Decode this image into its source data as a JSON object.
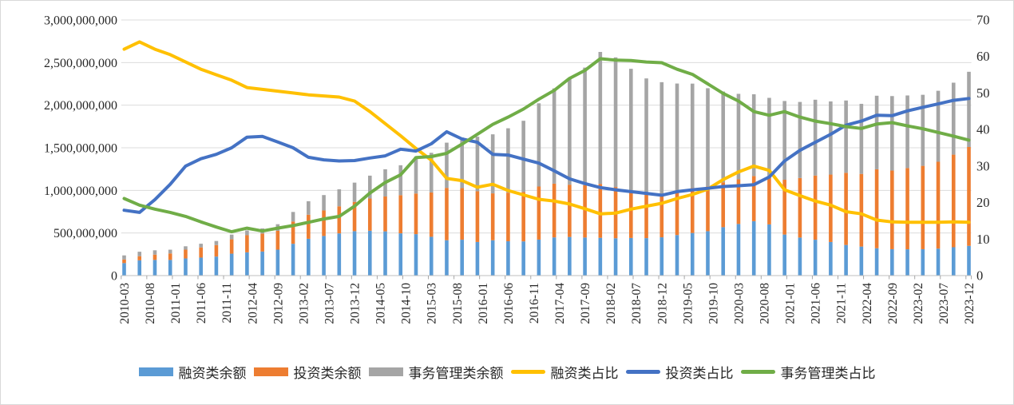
{
  "chart_data": {
    "type": "combo-stacked-bar-line",
    "title": "",
    "left_axis": {
      "min": 0,
      "max": 3000000000,
      "step": 500000000,
      "tick_labels": [
        "3,000,000,000",
        "2,500,000,000",
        "2,000,000,000",
        "1,500,000,000",
        "1,000,000,000",
        "500,000,000",
        "0"
      ]
    },
    "right_axis": {
      "min": 0,
      "max": 70,
      "step": 10,
      "tick_labels": [
        "70",
        "60",
        "50",
        "40",
        "30",
        "20",
        "10",
        "0"
      ]
    },
    "x_tick_labels_shown": [
      "2010-03",
      "2010-08",
      "2011-01",
      "2011-06",
      "2011-11",
      "2012-04",
      "2012-09",
      "2013-02",
      "2013-07",
      "2013-12",
      "2014-05",
      "2014-10",
      "2015-03",
      "2015-08",
      "2016-01",
      "2016-06",
      "2016-11",
      "2017-04",
      "2017-09",
      "2018-02",
      "2018-07",
      "2018-12",
      "2019-05",
      "2019-10",
      "2020-03",
      "2020-08",
      "2021-01",
      "2021-06",
      "2021-11",
      "2022-04",
      "2022-09",
      "2023-02",
      "2023-07",
      "2023-12"
    ],
    "categories": [
      "2010-03",
      "2010-06",
      "2010-09",
      "2010-12",
      "2011-03",
      "2011-06",
      "2011-09",
      "2011-12",
      "2012-03",
      "2012-06",
      "2012-09",
      "2012-12",
      "2013-03",
      "2013-06",
      "2013-09",
      "2013-12",
      "2014-03",
      "2014-06",
      "2014-09",
      "2014-12",
      "2015-03",
      "2015-06",
      "2015-09",
      "2015-12",
      "2016-03",
      "2016-06",
      "2016-09",
      "2016-12",
      "2017-03",
      "2017-06",
      "2017-09",
      "2017-12",
      "2018-03",
      "2018-06",
      "2018-09",
      "2018-12",
      "2019-03",
      "2019-06",
      "2019-09",
      "2019-12",
      "2020-03",
      "2020-06",
      "2020-09",
      "2020-12",
      "2021-03",
      "2021-06",
      "2021-09",
      "2021-12",
      "2022-03",
      "2022-06",
      "2022-09",
      "2022-12",
      "2023-03",
      "2023-06",
      "2023-09",
      "2023-12"
    ],
    "balance_total": [
      237000000,
      280000000,
      297000000,
      304000000,
      344000000,
      374000000,
      406000000,
      481000000,
      530000000,
      554000000,
      603000000,
      747000000,
      873000000,
      945000000,
      1013000000,
      1091000000,
      1173000000,
      1248000000,
      1295000000,
      1398000000,
      1441000000,
      1560000000,
      1620000000,
      1630000000,
      1658000000,
      1729000000,
      1817000000,
      2022000000,
      2197000000,
      2314000000,
      2441000000,
      2625000000,
      2561000000,
      2427000000,
      2314000000,
      2270000000,
      2254000000,
      2253000000,
      2199000000,
      2160000000,
      2133000000,
      2128000000,
      2086000000,
      2049000000,
      2038000000,
      2064000000,
      2044000000,
      2055000000,
      2016000000,
      2111000000,
      2107000000,
      2114000000,
      2122000000,
      2169000000,
      2264000000,
      2392000000
    ],
    "pct_financing": [
      62.0,
      64.0,
      62.0,
      60.5,
      58.5,
      56.5,
      55.0,
      53.5,
      51.5,
      51.0,
      50.5,
      50.0,
      49.5,
      49.2,
      48.9,
      47.8,
      44.9,
      41.6,
      38.3,
      34.8,
      31.6,
      26.6,
      26.0,
      24.2,
      25.0,
      23.3,
      22.1,
      20.9,
      20.4,
      19.6,
      18.3,
      16.9,
      17.1,
      18.2,
      19.0,
      19.8,
      21.1,
      22.2,
      23.7,
      26.3,
      28.4,
      30.0,
      28.8,
      23.5,
      21.9,
      20.4,
      19.3,
      17.5,
      16.9,
      15.2,
      14.7,
      14.6,
      14.6,
      14.6,
      14.7,
      14.6
    ],
    "pct_investment": [
      17.9,
      17.3,
      20.8,
      25.0,
      30.0,
      32.0,
      33.2,
      35.0,
      37.9,
      38.1,
      36.6,
      35.0,
      32.4,
      31.7,
      31.4,
      31.5,
      32.2,
      32.8,
      34.6,
      34.1,
      36.1,
      39.4,
      37.4,
      36.5,
      33.2,
      33.0,
      31.9,
      30.8,
      28.7,
      26.5,
      25.2,
      24.1,
      23.5,
      23.0,
      22.5,
      22.0,
      23.0,
      23.5,
      23.9,
      24.4,
      24.6,
      24.9,
      27.0,
      31.4,
      34.3,
      36.5,
      38.7,
      41.2,
      42.3,
      43.9,
      43.8,
      45.1,
      46.1,
      47.0,
      48.0,
      48.5
    ],
    "pct_admin": [
      21.1,
      19.3,
      18.2,
      17.3,
      16.2,
      14.7,
      13.3,
      12.0,
      13.0,
      12.2,
      13.0,
      13.7,
      14.6,
      15.5,
      16.2,
      19.0,
      22.6,
      25.5,
      27.6,
      32.3,
      32.6,
      33.5,
      36.0,
      38.7,
      41.4,
      43.4,
      45.6,
      48.3,
      50.7,
      54.0,
      56.2,
      59.4,
      59.0,
      58.9,
      58.5,
      58.3,
      56.5,
      55.1,
      52.5,
      49.9,
      47.8,
      44.9,
      43.9,
      44.9,
      43.4,
      42.3,
      41.6,
      40.8,
      40.3,
      41.5,
      41.9,
      41.0,
      40.2,
      39.2,
      38.2,
      37.1
    ],
    "bar_series": [
      {
        "label": "融资类余额",
        "color": "#5B9BD5",
        "pct_key": "pct_financing"
      },
      {
        "label": "投资类余额",
        "color": "#ED7D31",
        "pct_key": "pct_investment"
      },
      {
        "label": "事务管理类余额",
        "color": "#A5A5A5",
        "pct_key": "pct_admin"
      }
    ],
    "line_series": [
      {
        "label": "融资类占比",
        "color": "#FFC000",
        "pct_key": "pct_financing"
      },
      {
        "label": "投资类占比",
        "color": "#4472C4",
        "pct_key": "pct_investment"
      },
      {
        "label": "事务管理类占比",
        "color": "#70AD47",
        "pct_key": "pct_admin"
      }
    ],
    "legend": [
      {
        "label": "融资类余额",
        "color": "#5B9BD5",
        "type": "bar"
      },
      {
        "label": "投资类余额",
        "color": "#ED7D31",
        "type": "bar"
      },
      {
        "label": "事务管理类余额",
        "color": "#A5A5A5",
        "type": "bar"
      },
      {
        "label": "融资类占比",
        "color": "#FFC000",
        "type": "line"
      },
      {
        "label": "投资类占比",
        "color": "#4472C4",
        "type": "line"
      },
      {
        "label": "事务管理类占比",
        "color": "#70AD47",
        "type": "line"
      }
    ],
    "style": {
      "gridline_color": "#dcdcdc",
      "axis_line_color": "#bfbfbf",
      "tick_color": "#a6a6a6",
      "text_color": "#262626",
      "background": "#ffffff",
      "legend_position": "bottom",
      "grid_on": "horizontal"
    }
  }
}
